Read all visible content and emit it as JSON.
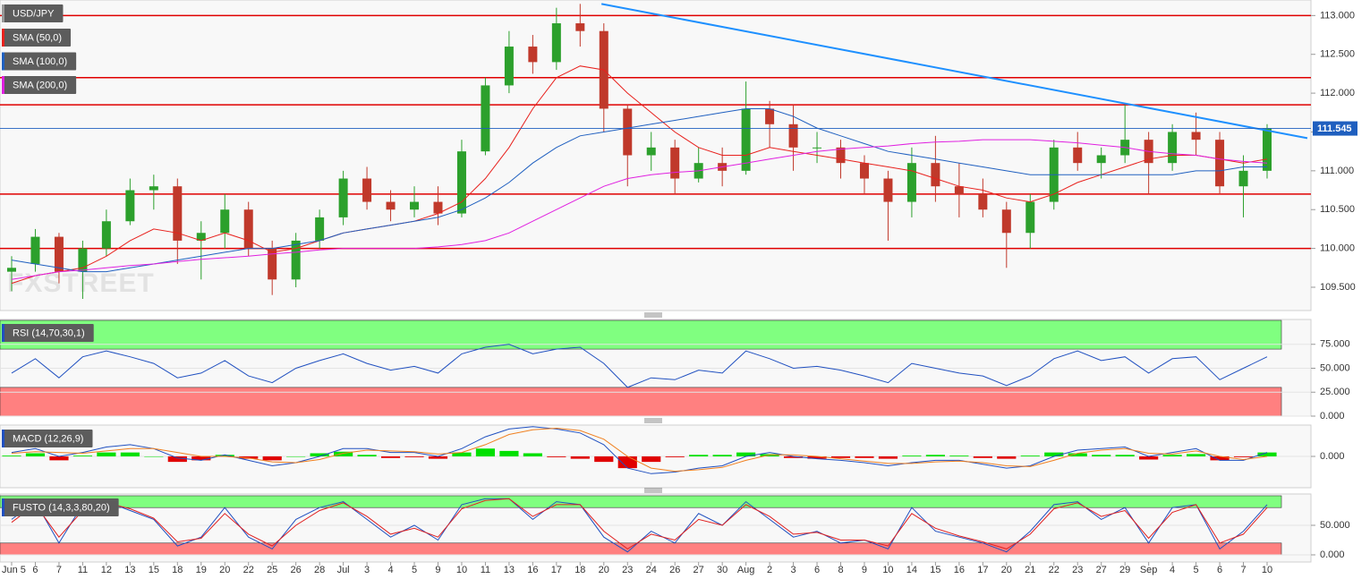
{
  "chart_data": [
    {
      "type": "candlestick",
      "title": "USD/JPY",
      "watermark": "FXSTREET",
      "categories": [
        "Jun 5",
        "6",
        "7",
        "11",
        "12",
        "13",
        "15",
        "18",
        "19",
        "20",
        "22",
        "25",
        "26",
        "28",
        "Jul",
        "3",
        "4",
        "5",
        "9",
        "10",
        "11",
        "13",
        "16",
        "17",
        "18",
        "20",
        "23",
        "24",
        "26",
        "27",
        "30",
        "Aug",
        "2",
        "3",
        "6",
        "8",
        "9",
        "10",
        "14",
        "15",
        "16",
        "17",
        "20",
        "21",
        "22",
        "23",
        "27",
        "29",
        "Sep",
        "4",
        "5",
        "6",
        "7",
        "10"
      ],
      "candles": [
        [
          109.7,
          109.9,
          109.45,
          109.75
        ],
        [
          109.8,
          110.25,
          109.7,
          110.15
        ],
        [
          110.15,
          110.2,
          109.55,
          109.7
        ],
        [
          109.7,
          110.1,
          109.35,
          110.0
        ],
        [
          110.0,
          110.5,
          109.9,
          110.35
        ],
        [
          110.35,
          110.9,
          110.3,
          110.75
        ],
        [
          110.75,
          110.95,
          110.5,
          110.8
        ],
        [
          110.8,
          110.9,
          109.8,
          110.1
        ],
        [
          110.1,
          110.35,
          109.6,
          110.2
        ],
        [
          110.2,
          110.7,
          110.0,
          110.5
        ],
        [
          110.5,
          110.6,
          109.9,
          110.0
        ],
        [
          110.0,
          110.1,
          109.4,
          109.6
        ],
        [
          109.6,
          110.2,
          109.5,
          110.1
        ],
        [
          110.1,
          110.5,
          110.0,
          110.4
        ],
        [
          110.4,
          111.0,
          110.3,
          110.9
        ],
        [
          110.9,
          111.05,
          110.5,
          110.6
        ],
        [
          110.6,
          110.75,
          110.35,
          110.5
        ],
        [
          110.5,
          110.8,
          110.4,
          110.6
        ],
        [
          110.6,
          110.8,
          110.3,
          110.45
        ],
        [
          110.45,
          111.4,
          110.4,
          111.25
        ],
        [
          111.25,
          112.2,
          111.2,
          112.1
        ],
        [
          112.1,
          112.8,
          112.0,
          112.6
        ],
        [
          112.6,
          112.75,
          112.25,
          112.4
        ],
        [
          112.4,
          113.1,
          112.3,
          112.9
        ],
        [
          112.9,
          113.15,
          112.6,
          112.8
        ],
        [
          112.8,
          112.9,
          111.5,
          111.8
        ],
        [
          111.8,
          111.85,
          110.8,
          111.2
        ],
        [
          111.2,
          111.5,
          111.0,
          111.3
        ],
        [
          111.3,
          111.4,
          110.7,
          110.9
        ],
        [
          110.9,
          111.3,
          110.85,
          111.1
        ],
        [
          111.1,
          111.3,
          110.8,
          111.0
        ],
        [
          111.0,
          112.15,
          110.95,
          111.8
        ],
        [
          111.8,
          111.9,
          111.3,
          111.6
        ],
        [
          111.6,
          111.85,
          111.0,
          111.3
        ],
        [
          111.3,
          111.5,
          111.1,
          111.3
        ],
        [
          111.3,
          111.4,
          110.9,
          111.1
        ],
        [
          111.1,
          111.2,
          110.7,
          110.9
        ],
        [
          110.9,
          111.0,
          110.1,
          110.6
        ],
        [
          110.6,
          111.3,
          110.4,
          111.1
        ],
        [
          111.1,
          111.45,
          110.6,
          110.8
        ],
        [
          110.8,
          111.1,
          110.4,
          110.7
        ],
        [
          110.7,
          110.9,
          110.4,
          110.5
        ],
        [
          110.5,
          110.6,
          109.75,
          110.2
        ],
        [
          110.2,
          110.7,
          110.0,
          110.6
        ],
        [
          110.6,
          111.4,
          110.5,
          111.3
        ],
        [
          111.3,
          111.5,
          111.0,
          111.1
        ],
        [
          111.1,
          111.3,
          110.9,
          111.2
        ],
        [
          111.2,
          111.85,
          111.1,
          111.4
        ],
        [
          111.4,
          111.5,
          110.7,
          111.1
        ],
        [
          111.1,
          111.6,
          111.0,
          111.5
        ],
        [
          111.5,
          111.75,
          111.2,
          111.4
        ],
        [
          111.4,
          111.5,
          110.7,
          110.8
        ],
        [
          110.8,
          111.2,
          110.4,
          111.0
        ],
        [
          111.0,
          111.6,
          110.9,
          111.55
        ]
      ],
      "up_color": "#2ca02c",
      "down_color": "#c0392b",
      "series": [
        {
          "name": "SMA (50,0)",
          "color": "#e8211d",
          "values": [
            109.55,
            109.65,
            109.7,
            109.75,
            109.9,
            110.1,
            110.25,
            110.2,
            110.1,
            110.2,
            110.1,
            109.95,
            110.0,
            110.1,
            110.2,
            110.25,
            110.3,
            110.35,
            110.45,
            110.6,
            110.9,
            111.3,
            111.8,
            112.2,
            112.35,
            112.3,
            112.0,
            111.75,
            111.5,
            111.3,
            111.2,
            111.2,
            111.3,
            111.25,
            111.2,
            111.15,
            111.1,
            111.05,
            111.0,
            110.9,
            110.8,
            110.75,
            110.65,
            110.6,
            110.7,
            110.85,
            110.95,
            111.05,
            111.15,
            111.2,
            111.2,
            111.15,
            111.1,
            111.15
          ]
        },
        {
          "name": "SMA (100,0)",
          "color": "#2060c0",
          "values": [
            109.85,
            109.8,
            109.75,
            109.7,
            109.7,
            109.75,
            109.8,
            109.85,
            109.9,
            109.95,
            110.0,
            110.0,
            110.05,
            110.1,
            110.2,
            110.25,
            110.3,
            110.35,
            110.4,
            110.5,
            110.65,
            110.85,
            111.1,
            111.3,
            111.45,
            111.5,
            111.55,
            111.6,
            111.65,
            111.7,
            111.75,
            111.8,
            111.8,
            111.7,
            111.55,
            111.45,
            111.35,
            111.25,
            111.2,
            111.15,
            111.1,
            111.05,
            111.0,
            110.95,
            110.95,
            110.95,
            110.95,
            110.95,
            110.95,
            110.95,
            111.0,
            111.0,
            111.05,
            111.05
          ]
        },
        {
          "name": "SMA (200,0)",
          "color": "#e020e0",
          "values": [
            109.6,
            109.65,
            109.7,
            109.72,
            109.75,
            109.78,
            109.8,
            109.83,
            109.86,
            109.88,
            109.9,
            109.93,
            109.95,
            109.98,
            110.0,
            110.0,
            110.0,
            110.0,
            110.02,
            110.05,
            110.1,
            110.2,
            110.35,
            110.5,
            110.65,
            110.8,
            110.9,
            110.95,
            110.98,
            111.0,
            111.05,
            111.1,
            111.15,
            111.2,
            111.25,
            111.28,
            111.3,
            111.32,
            111.35,
            111.37,
            111.38,
            111.4,
            111.4,
            111.4,
            111.38,
            111.36,
            111.33,
            111.3,
            111.25,
            111.22,
            111.2,
            111.15,
            111.12,
            111.1
          ]
        }
      ],
      "levels": [
        113.0,
        112.2,
        111.85,
        110.7,
        110.0
      ],
      "level_color": "#e00000",
      "trendline": {
        "x": [
          24.9,
          54.7
        ],
        "values": [
          113.15,
          111.42
        ],
        "color": "#1e90ff"
      },
      "last_price": 111.545,
      "last_price_color": "#1f5fbf",
      "ylim": [
        109.2,
        113.2
      ],
      "yticks": [
        {
          "value": 109.5,
          "label": "109.500"
        },
        {
          "value": 110,
          "label": "110.000"
        },
        {
          "value": 110.5,
          "label": "110.500"
        },
        {
          "value": 111,
          "label": "111.000"
        },
        {
          "value": 111.5,
          "label": "111.500"
        },
        {
          "value": 112,
          "label": "112.000"
        },
        {
          "value": 112.5,
          "label": "112.500"
        },
        {
          "value": 113,
          "label": "113.000"
        }
      ]
    },
    {
      "type": "line",
      "title": "RSI (14,70,30,1)",
      "series": [
        {
          "color": "#2050c0",
          "values": [
            45,
            60,
            40,
            62,
            68,
            62,
            55,
            40,
            45,
            58,
            42,
            35,
            50,
            58,
            65,
            55,
            48,
            52,
            45,
            65,
            72,
            75,
            65,
            70,
            72,
            55,
            30,
            40,
            38,
            48,
            45,
            68,
            60,
            50,
            52,
            48,
            42,
            35,
            55,
            50,
            45,
            42,
            32,
            42,
            60,
            68,
            58,
            62,
            45,
            60,
            62,
            38,
            50,
            62
          ]
        }
      ],
      "zones": [
        {
          "from": 70,
          "to": 100,
          "color": "#80ff80"
        },
        {
          "from": 0,
          "to": 30,
          "color": "#ff8080"
        }
      ],
      "ylim": [
        0,
        100
      ],
      "yticks": [
        {
          "value": 0,
          "label": "0.000"
        },
        {
          "value": 25,
          "label": "25.000"
        },
        {
          "value": 50,
          "label": "50.000"
        },
        {
          "value": 75,
          "label": "75.000"
        }
      ]
    },
    {
      "type": "macd",
      "title": "MACD (12,26,9)",
      "series": [
        {
          "color": "#2050c0",
          "values": [
            0.05,
            0.1,
            0.0,
            0.05,
            0.12,
            0.15,
            0.1,
            -0.02,
            -0.05,
            0.02,
            -0.05,
            -0.12,
            -0.08,
            0.0,
            0.1,
            0.1,
            0.05,
            0.05,
            0.0,
            0.1,
            0.25,
            0.35,
            0.38,
            0.35,
            0.3,
            0.15,
            -0.15,
            -0.22,
            -0.2,
            -0.15,
            -0.12,
            0.0,
            0.05,
            0.0,
            -0.03,
            -0.05,
            -0.08,
            -0.12,
            -0.08,
            -0.05,
            -0.05,
            -0.1,
            -0.15,
            -0.12,
            0.0,
            0.08,
            0.1,
            0.12,
            0.0,
            0.05,
            0.1,
            -0.05,
            -0.05,
            0.05
          ]
        },
        {
          "color": "#f08020",
          "values": [
            0.04,
            0.06,
            0.05,
            0.04,
            0.07,
            0.1,
            0.1,
            0.05,
            0.0,
            0.0,
            -0.02,
            -0.07,
            -0.08,
            -0.04,
            0.04,
            0.08,
            0.07,
            0.06,
            0.03,
            0.05,
            0.15,
            0.28,
            0.34,
            0.36,
            0.33,
            0.22,
            0.0,
            -0.15,
            -0.19,
            -0.17,
            -0.14,
            -0.05,
            0.02,
            0.02,
            0.0,
            -0.03,
            -0.06,
            -0.09,
            -0.09,
            -0.07,
            -0.06,
            -0.08,
            -0.12,
            -0.13,
            -0.05,
            0.04,
            0.08,
            0.1,
            0.04,
            0.03,
            0.07,
            0.0,
            -0.04,
            0.0
          ]
        }
      ],
      "histogram": {
        "positive_color": "#00e000",
        "negative_color": "#e00000",
        "values": [
          0.01,
          0.04,
          -0.05,
          0.01,
          0.05,
          0.05,
          0,
          -0.07,
          -0.05,
          0.02,
          -0.03,
          -0.05,
          0,
          0.04,
          0.06,
          0.02,
          -0.02,
          -0.01,
          -0.03,
          0.05,
          0.1,
          0.07,
          0.04,
          -0.01,
          -0.03,
          -0.07,
          -0.15,
          -0.07,
          -0.01,
          0.02,
          0.02,
          0.05,
          0.03,
          -0.02,
          -0.03,
          -0.02,
          -0.02,
          -0.03,
          0.01,
          0.02,
          0.01,
          -0.02,
          -0.03,
          0.01,
          0.05,
          0.04,
          0.02,
          0.02,
          -0.04,
          0.02,
          0.03,
          -0.05,
          -0.01,
          0.05
        ]
      },
      "ylim": [
        -0.4,
        0.4
      ],
      "yticks": [
        {
          "value": 0,
          "label": "0.000"
        }
      ]
    },
    {
      "type": "line",
      "title": "FUSTO (14,3,3,80,20)",
      "series": [
        {
          "color": "#2050c0",
          "values": [
            60,
            90,
            20,
            85,
            90,
            75,
            60,
            15,
            30,
            80,
            30,
            10,
            60,
            80,
            90,
            60,
            30,
            50,
            25,
            85,
            95,
            95,
            60,
            90,
            85,
            30,
            5,
            40,
            20,
            70,
            50,
            90,
            60,
            30,
            40,
            20,
            25,
            10,
            80,
            40,
            30,
            20,
            5,
            40,
            85,
            90,
            60,
            80,
            20,
            80,
            85,
            10,
            40,
            85
          ]
        },
        {
          "color": "#e02020",
          "values": [
            55,
            85,
            30,
            75,
            88,
            78,
            62,
            22,
            28,
            70,
            35,
            15,
            50,
            75,
            88,
            65,
            35,
            45,
            30,
            78,
            92,
            95,
            65,
            85,
            85,
            40,
            10,
            35,
            25,
            60,
            50,
            85,
            65,
            35,
            38,
            25,
            25,
            15,
            70,
            45,
            32,
            22,
            10,
            35,
            78,
            88,
            65,
            75,
            28,
            72,
            85,
            20,
            35,
            80
          ]
        }
      ],
      "zones": [
        {
          "from": 80,
          "to": 100,
          "color": "#80ff80"
        },
        {
          "from": 0,
          "to": 20,
          "color": "#ff8080"
        }
      ],
      "ylim": [
        0,
        100
      ],
      "yticks": [
        {
          "value": 0,
          "label": "0.000"
        },
        {
          "value": 50,
          "label": "50.000"
        }
      ]
    }
  ]
}
